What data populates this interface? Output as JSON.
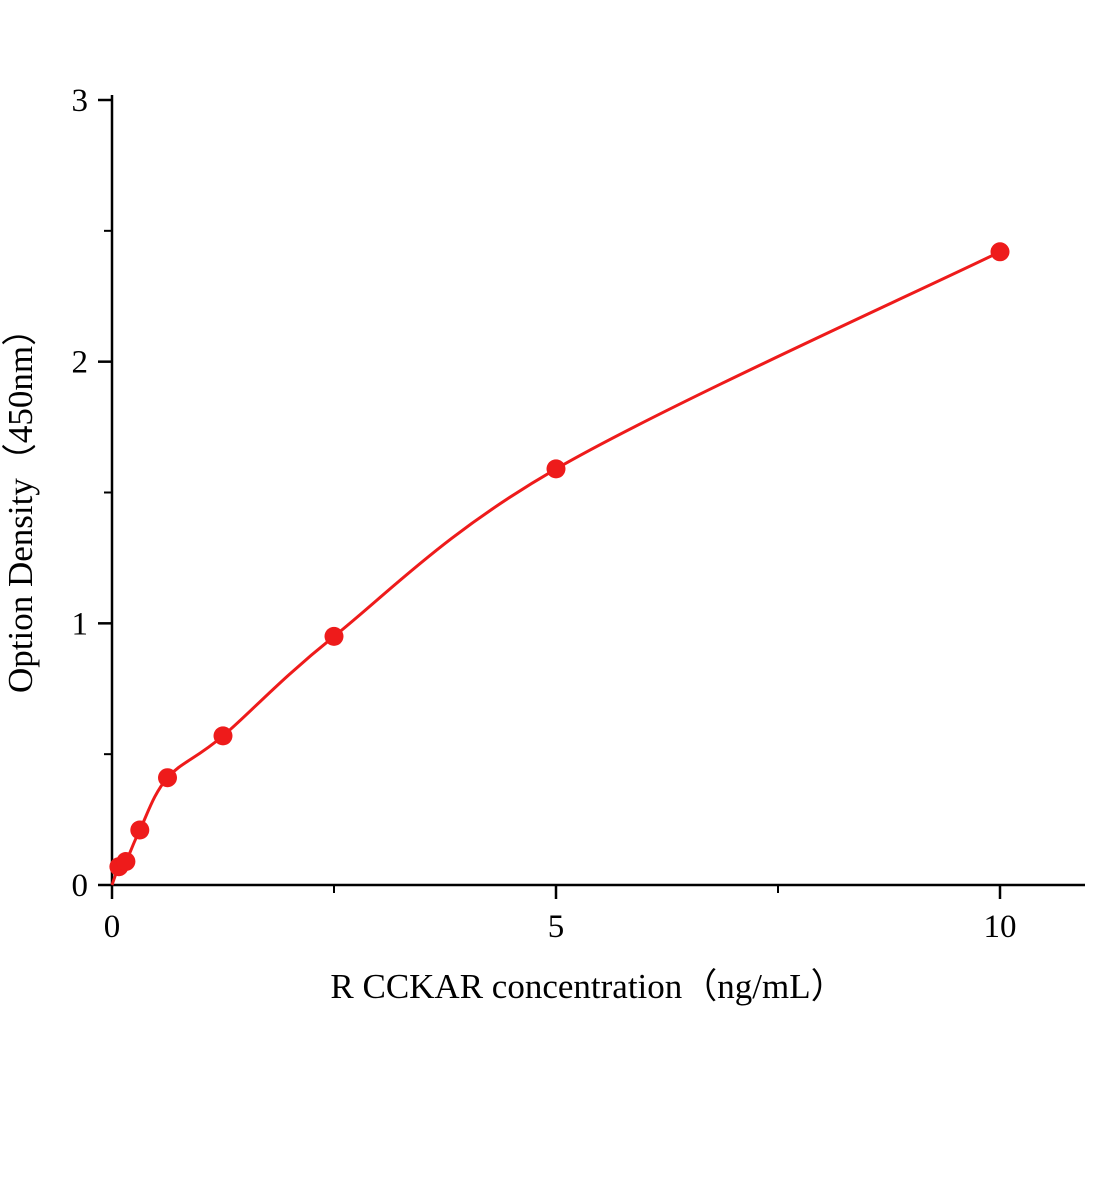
{
  "page": {
    "background": "#ffffff"
  },
  "chart_data": {
    "type": "scatter",
    "has_fit_line": true,
    "x": [
      0.078,
      0.156,
      0.313,
      0.625,
      1.25,
      2.5,
      5,
      10
    ],
    "y": [
      0.07,
      0.09,
      0.21,
      0.41,
      0.57,
      0.95,
      1.59,
      2.42
    ],
    "curve_start": [
      0,
      0
    ],
    "title": "",
    "xlabel": "R CCKAR  concentration（ng/mL）",
    "ylabel": "Option Density（450nm）",
    "xlim": [
      0,
      10.95
    ],
    "ylim": [
      0,
      3.02
    ],
    "x_ticks_major": [
      0,
      5,
      10
    ],
    "x_tick_labels": [
      "0",
      "5",
      "10"
    ],
    "x_ticks_minor": [
      2.5,
      7.5
    ],
    "y_ticks_major": [
      0,
      1,
      2,
      3
    ],
    "y_tick_labels": [
      "0",
      "1",
      "2",
      "3"
    ],
    "y_ticks_minor": [
      0.5,
      1.5,
      2.5
    ],
    "grid": false,
    "legend": null,
    "point_color": "#ee1b1b",
    "line_color": "#ee1b1b",
    "axis_color": "#000000"
  }
}
